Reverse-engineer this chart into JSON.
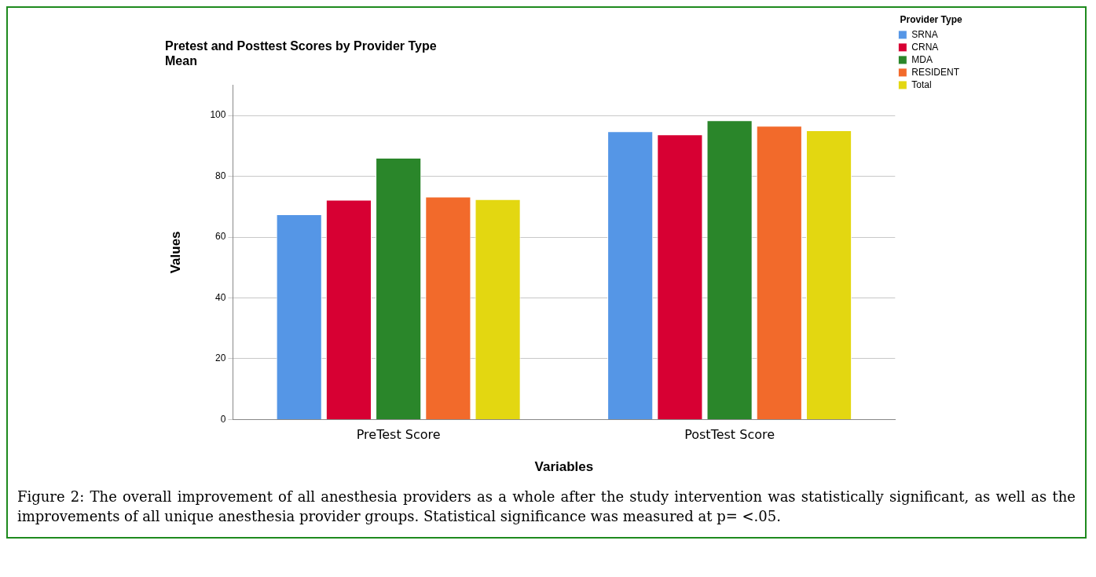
{
  "chart_data": {
    "type": "bar",
    "title": "Pretest and Posttest Scores by Provider Type",
    "subtitle": "Mean",
    "xlabel": "Variables",
    "ylabel": "Values",
    "legend_title": "Provider Type",
    "categories": [
      "PreTest Score",
      "PostTest Score"
    ],
    "series": [
      {
        "name": "SRNA",
        "color": "#5596e6",
        "values": [
          67.5,
          94.8
        ]
      },
      {
        "name": "CRNA",
        "color": "#d70033",
        "values": [
          72.3,
          93.8
        ]
      },
      {
        "name": "MDA",
        "color": "#2a862a",
        "values": [
          86.1,
          98.4
        ]
      },
      {
        "name": "RESIDENT",
        "color": "#f26a2b",
        "values": [
          73.3,
          96.6
        ]
      },
      {
        "name": "Total",
        "color": "#e3d711",
        "values": [
          72.5,
          95.1
        ]
      }
    ],
    "ylim": [
      0,
      110
    ],
    "yticks": [
      0,
      20,
      40,
      60,
      80,
      100
    ],
    "grid": "y",
    "legend": "top right",
    "annotations": [
      "Figure 2: The overall improvement of all anesthesia providers as a whole after the study intervention was statistically significant, as well as the improvements of all unique anesthesia provider groups. Statistical significance was measured at p= <.05."
    ]
  }
}
